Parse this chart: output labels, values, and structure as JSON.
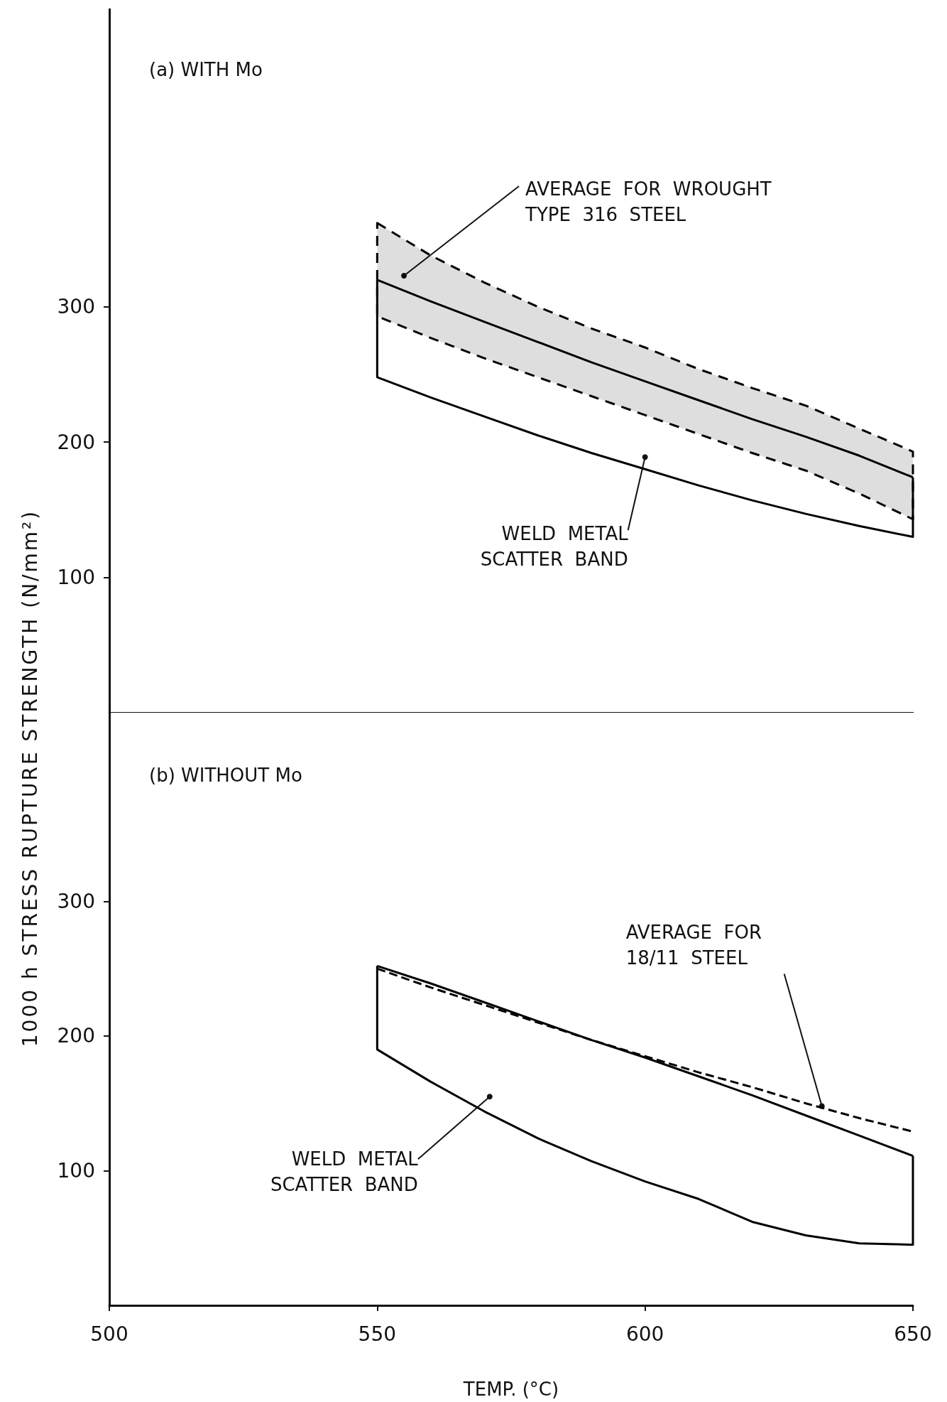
{
  "chart_data": [
    {
      "type": "line",
      "title": "(a) WITH Mo",
      "ylabel": "1000 h  STRESS  RUPTURE  STRENGTH (N/mm²)",
      "x": [
        550,
        560,
        570,
        580,
        590,
        600,
        610,
        620,
        630,
        640,
        650
      ],
      "xlim": [
        500,
        650
      ],
      "xticks": [
        500,
        550,
        600,
        650
      ],
      "ylim": [
        0,
        520
      ],
      "yticks": [
        100,
        200,
        300
      ],
      "tick_labels": "y",
      "series": [
        {
          "color": "#000000",
          "values": [
            320,
            304,
            289,
            274,
            259,
            245,
            231,
            217,
            204,
            190,
            174
          ],
          "lower": [
            293,
            277,
            262,
            248,
            234,
            220,
            206,
            192,
            179,
            162,
            143
          ],
          "upper": [
            362,
            338,
            318,
            300,
            284,
            270,
            254,
            240,
            227,
            210,
            193
          ]
        },
        {
          "color": "#000000",
          "x": [
            550,
            550,
            560,
            570,
            580,
            590,
            600,
            610,
            620,
            630,
            640,
            650,
            650
          ],
          "values": [
            320,
            248,
            233,
            219,
            205,
            192,
            180,
            168,
            157,
            147,
            138,
            130,
            174
          ]
        }
      ],
      "annotations": [
        {
          "text": "AVERAGE  FOR  WROUGHT\nTYPE  316  STEEL",
          "x": 555,
          "y": 323
        },
        {
          "text": "WELD  METAL\nSCATTER  BAND",
          "x": 600,
          "y": 189
        }
      ]
    },
    {
      "type": "line",
      "title": "(b) WITHOUT Mo",
      "xlabel": "TEMP. (°C)",
      "x": [
        550,
        560,
        570,
        580,
        590,
        600,
        610,
        620,
        630,
        640,
        650
      ],
      "xlim": [
        500,
        650
      ],
      "xticks": [
        500,
        550,
        600,
        650
      ],
      "ylim": [
        0,
        440
      ],
      "yticks": [
        100,
        200,
        300
      ],
      "series": [
        {
          "color": "#000000",
          "values": [
            252,
            239,
            225,
            211,
            197,
            184,
            170,
            156,
            141,
            126,
            111
          ]
        },
        {
          "color": "#000000",
          "line_style": "dashed",
          "values": [
            250,
            236,
            223,
            210,
            197,
            185,
            173,
            162,
            150,
            139,
            129
          ]
        },
        {
          "color": "#000000",
          "x": [
            550,
            550,
            560,
            570,
            580,
            590,
            600,
            610,
            620,
            630,
            640,
            650,
            650
          ],
          "values": [
            252,
            190,
            166,
            144,
            124,
            107,
            92,
            79,
            62,
            52,
            46,
            45,
            111
          ]
        }
      ],
      "annotations": [
        {
          "text": "AVERAGE  FOR\n18/11  STEEL",
          "x": 633,
          "y": 148
        },
        {
          "text": "WELD  METAL\nSCATTER  BAND",
          "x": 571,
          "y": 155
        }
      ]
    }
  ]
}
